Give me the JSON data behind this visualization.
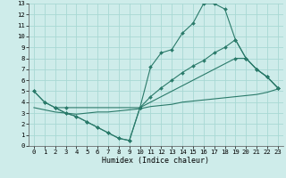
{
  "background_color": "#ceecea",
  "grid_color": "#a8d8d4",
  "line_color": "#2a7a6a",
  "xlabel": "Humidex (Indice chaleur)",
  "xlim": [
    0,
    23
  ],
  "ylim": [
    0,
    13
  ],
  "xticks": [
    0,
    1,
    2,
    3,
    4,
    5,
    6,
    7,
    8,
    9,
    10,
    11,
    12,
    13,
    14,
    15,
    16,
    17,
    18,
    19,
    20,
    21,
    22,
    23
  ],
  "yticks": [
    0,
    1,
    2,
    3,
    4,
    5,
    6,
    7,
    8,
    9,
    10,
    11,
    12,
    13
  ],
  "c1x": [
    0,
    1,
    2,
    3,
    4,
    5,
    6,
    7,
    8,
    9,
    10,
    11,
    12,
    13,
    14,
    15,
    16,
    17,
    18,
    19,
    20,
    21,
    22,
    23
  ],
  "c1y": [
    5,
    4,
    3.5,
    3,
    2.7,
    2.2,
    1.7,
    1.2,
    0.7,
    0.5,
    3.5,
    7.2,
    8.5,
    8.8,
    10.3,
    11.2,
    13,
    13,
    12.5,
    9.7,
    8,
    7,
    6.3,
    5.3
  ],
  "c2x": [
    0,
    1,
    2,
    3,
    10,
    11,
    12,
    13,
    14,
    15,
    16,
    17,
    18,
    19,
    20,
    21,
    22,
    23
  ],
  "c2y": [
    5,
    4,
    3.5,
    3.5,
    3.5,
    4.5,
    5.3,
    6.0,
    6.7,
    7.3,
    7.8,
    8.5,
    9.0,
    9.7,
    8,
    7,
    6.3,
    5.3
  ],
  "c3x": [
    2,
    3,
    4,
    5,
    6,
    7,
    8,
    9,
    10,
    19,
    20,
    21,
    22,
    23
  ],
  "c3y": [
    3.5,
    3,
    2.7,
    2.2,
    1.7,
    1.2,
    0.7,
    0.5,
    3.5,
    8,
    8,
    7,
    6.3,
    5.3
  ],
  "c4x": [
    0,
    1,
    2,
    3,
    4,
    5,
    6,
    7,
    8,
    9,
    10,
    11,
    12,
    13,
    14,
    15,
    16,
    17,
    18,
    19,
    20,
    21,
    22,
    23
  ],
  "c4y": [
    3.5,
    3.3,
    3.1,
    3.0,
    2.9,
    3.0,
    3.1,
    3.1,
    3.2,
    3.3,
    3.4,
    3.6,
    3.7,
    3.8,
    4.0,
    4.1,
    4.2,
    4.3,
    4.4,
    4.5,
    4.6,
    4.7,
    4.9,
    5.2
  ]
}
